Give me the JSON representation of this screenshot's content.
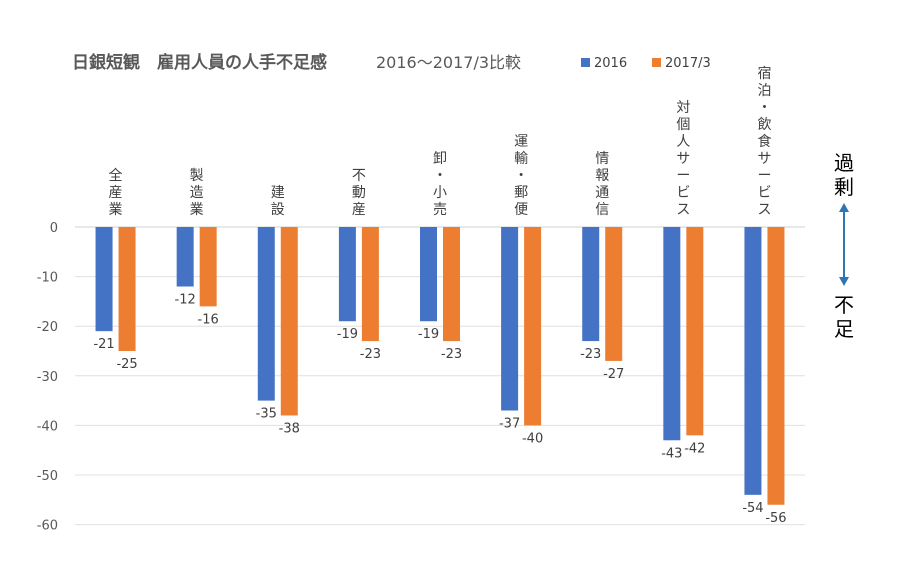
{
  "chart_data": {
    "type": "bar",
    "title": "日銀短観　雇用人員の人手不足感",
    "subtitle": "2016～2017/3比較",
    "categories": [
      "全産業",
      "製造業",
      "建設",
      "不動産",
      "卸・小売",
      "運輸・郵便",
      "情報通信",
      "対個人サービス",
      "宿泊・飲食サービス"
    ],
    "series": [
      {
        "name": "2016",
        "color": "#4472C4",
        "values": [
          -21,
          -12,
          -35,
          -19,
          -19,
          -37,
          -23,
          -43,
          -54
        ]
      },
      {
        "name": "2017/3",
        "color": "#ED7D31",
        "values": [
          -25,
          -16,
          -38,
          -23,
          -23,
          -40,
          -27,
          -42,
          -56
        ]
      }
    ],
    "ylim": [
      -60,
      0
    ],
    "yticks": [
      0,
      -10,
      -20,
      -30,
      -40,
      -50,
      -60
    ],
    "grid": true,
    "legend": "top-right",
    "side_labels": {
      "top": "過剰",
      "bottom": "不足"
    },
    "arrow_color": "#2E75B6"
  }
}
